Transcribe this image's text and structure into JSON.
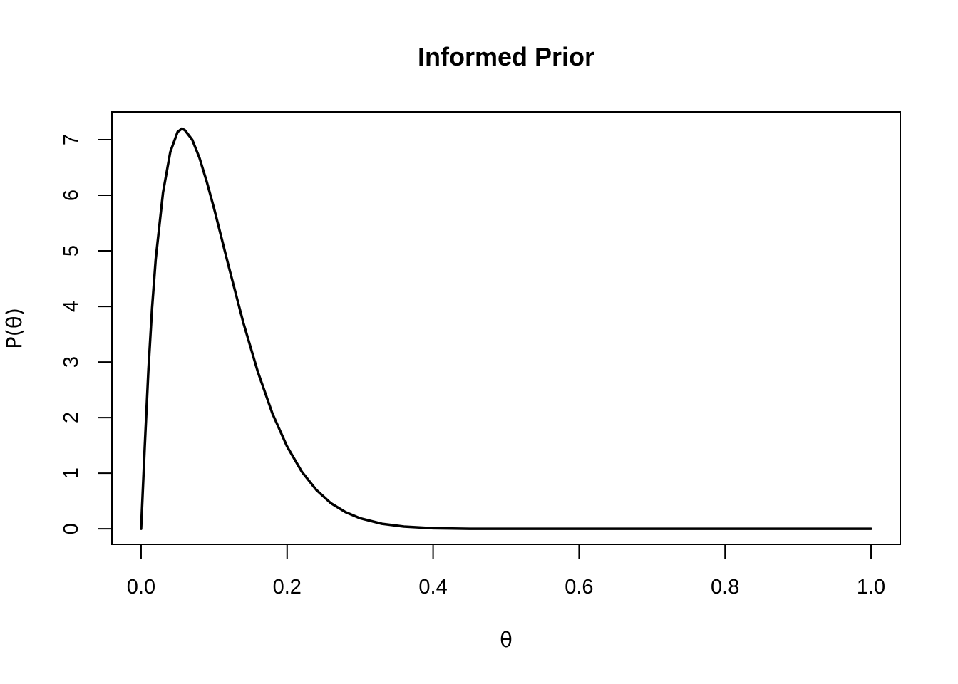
{
  "chart_data": {
    "type": "line",
    "title": "Informed Prior",
    "xlabel": "θ",
    "ylabel": "P(θ)",
    "xlim": [
      -0.04,
      1.04
    ],
    "ylim": [
      -0.28,
      7.5
    ],
    "x_ticks": [
      0.0,
      0.2,
      0.4,
      0.6,
      0.8,
      1.0
    ],
    "x_tick_labels": [
      "0.0",
      "0.2",
      "0.4",
      "0.6",
      "0.8",
      "1.0"
    ],
    "y_ticks": [
      0,
      1,
      2,
      3,
      4,
      5,
      6,
      7
    ],
    "y_tick_labels": [
      "0",
      "1",
      "2",
      "3",
      "4",
      "5",
      "6",
      "7"
    ],
    "grid": false,
    "legend": "none",
    "line_color": "#000000",
    "series": [
      {
        "x": [
          0.0,
          0.005,
          0.01,
          0.015,
          0.02,
          0.03,
          0.04,
          0.05,
          0.056,
          0.06,
          0.07,
          0.08,
          0.09,
          0.1,
          0.12,
          0.14,
          0.16,
          0.18,
          0.2,
          0.22,
          0.24,
          0.26,
          0.28,
          0.3,
          0.33,
          0.36,
          0.4,
          0.45,
          0.5,
          0.6,
          0.7,
          0.8,
          0.9,
          1.0
        ],
        "y": [
          0.0,
          1.48,
          2.86,
          3.97,
          4.85,
          6.05,
          6.78,
          7.14,
          7.2,
          7.17,
          7.0,
          6.67,
          6.24,
          5.76,
          4.72,
          3.71,
          2.82,
          2.07,
          1.48,
          1.03,
          0.7,
          0.46,
          0.3,
          0.19,
          0.09,
          0.04,
          0.01,
          0.0,
          0.0,
          0.0,
          0.0,
          0.0,
          0.0,
          0.0
        ]
      }
    ]
  }
}
